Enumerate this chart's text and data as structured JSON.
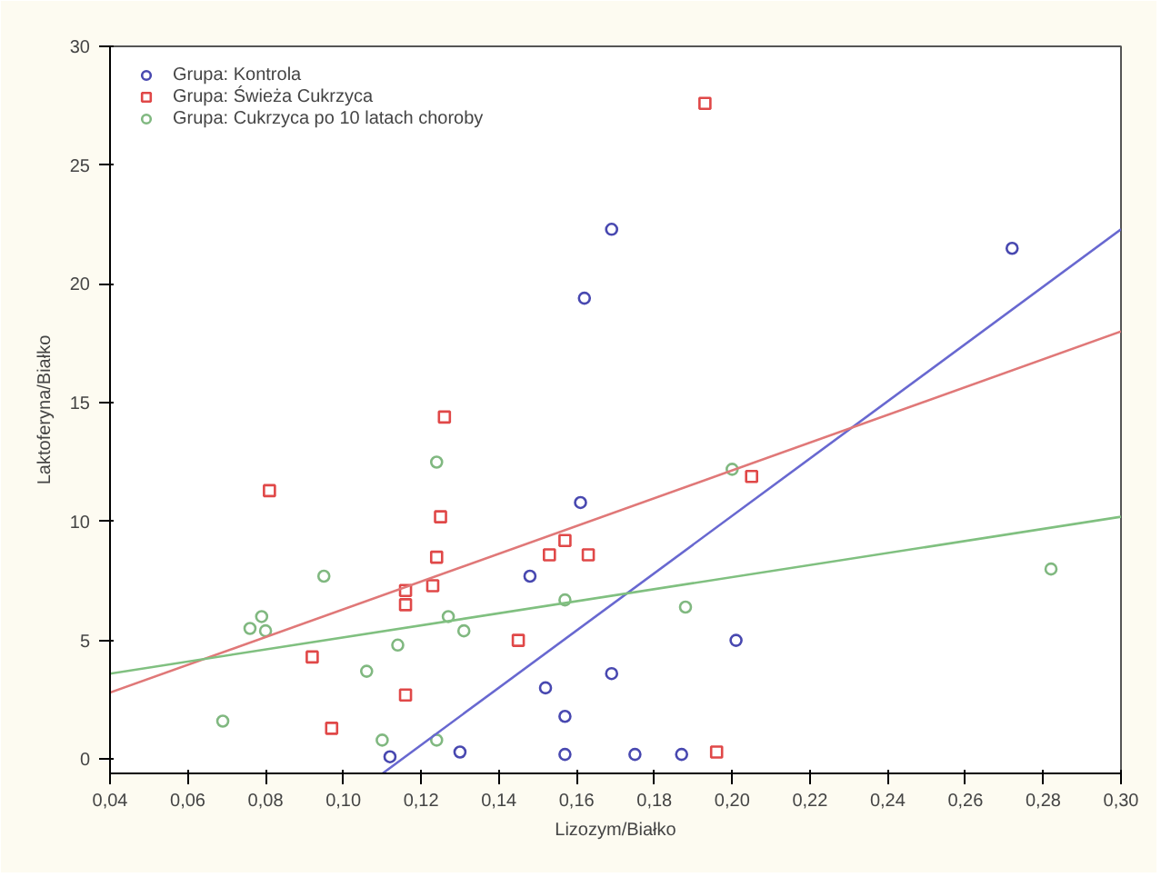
{
  "chart_data": {
    "type": "scatter",
    "xlabel": "Lizozym/Białko",
    "ylabel": "Laktoferyna/Białko",
    "xlim": [
      0.04,
      0.3
    ],
    "ylim": [
      -0.6,
      30
    ],
    "xticks": [
      {
        "value": 0.04,
        "label": "0,04"
      },
      {
        "value": 0.06,
        "label": "0,06"
      },
      {
        "value": 0.08,
        "label": "0,08"
      },
      {
        "value": 0.1,
        "label": "0,10"
      },
      {
        "value": 0.12,
        "label": "0,12"
      },
      {
        "value": 0.14,
        "label": "0,14"
      },
      {
        "value": 0.16,
        "label": "0,16"
      },
      {
        "value": 0.18,
        "label": "0,18"
      },
      {
        "value": 0.2,
        "label": "0,20"
      },
      {
        "value": 0.22,
        "label": "0,22"
      },
      {
        "value": 0.24,
        "label": "0,24"
      },
      {
        "value": 0.26,
        "label": "0,26"
      },
      {
        "value": 0.28,
        "label": "0,28"
      },
      {
        "value": 0.3,
        "label": "0,30"
      }
    ],
    "yticks": [
      0,
      5,
      10,
      15,
      20,
      25,
      30
    ],
    "grid": false,
    "legend": "top left",
    "series": [
      {
        "name": "Grupa: Kontrola",
        "color": "#4848b0",
        "marker": "circle",
        "x": [
          0.169,
          0.162,
          0.272,
          0.161,
          0.148,
          0.152,
          0.157,
          0.157,
          0.169,
          0.175,
          0.187,
          0.201,
          0.112,
          0.13
        ],
        "values": [
          22.3,
          19.4,
          21.5,
          10.8,
          7.7,
          3.0,
          1.8,
          0.2,
          3.6,
          0.2,
          0.2,
          5.0,
          0.1,
          0.3
        ]
      },
      {
        "name": "Grupa: Świeża Cukrzyca",
        "color": "#e04848",
        "marker": "square",
        "x": [
          0.193,
          0.126,
          0.081,
          0.125,
          0.124,
          0.123,
          0.116,
          0.116,
          0.116,
          0.092,
          0.097,
          0.145,
          0.157,
          0.153,
          0.163,
          0.205,
          0.196
        ],
        "values": [
          27.6,
          14.4,
          11.3,
          10.2,
          8.5,
          7.3,
          7.1,
          6.5,
          2.7,
          4.3,
          1.3,
          5.0,
          9.2,
          8.6,
          8.6,
          11.9,
          0.3
        ]
      },
      {
        "name": "Grupa: Cukrzyca po 10 latach choroby",
        "color": "#80b880",
        "marker": "circle",
        "x": [
          0.069,
          0.076,
          0.079,
          0.08,
          0.095,
          0.106,
          0.114,
          0.11,
          0.124,
          0.124,
          0.127,
          0.131,
          0.157,
          0.2,
          0.188,
          0.282
        ],
        "values": [
          1.6,
          5.5,
          6.0,
          5.4,
          7.7,
          3.7,
          4.8,
          0.8,
          12.5,
          0.8,
          6.0,
          5.4,
          6.7,
          12.2,
          6.4,
          8.0
        ]
      },
      {
        "type": "line",
        "color": "#6868d0",
        "x": [
          0.1101,
          0.3
        ],
        "values": [
          -0.6,
          22.3
        ]
      },
      {
        "type": "line",
        "color": "#e07878",
        "x": [
          0.04,
          0.3
        ],
        "values": [
          2.8,
          18.0
        ]
      },
      {
        "type": "line",
        "color": "#80c080",
        "x": [
          0.04,
          0.3
        ],
        "values": [
          3.6,
          10.2
        ]
      }
    ]
  }
}
